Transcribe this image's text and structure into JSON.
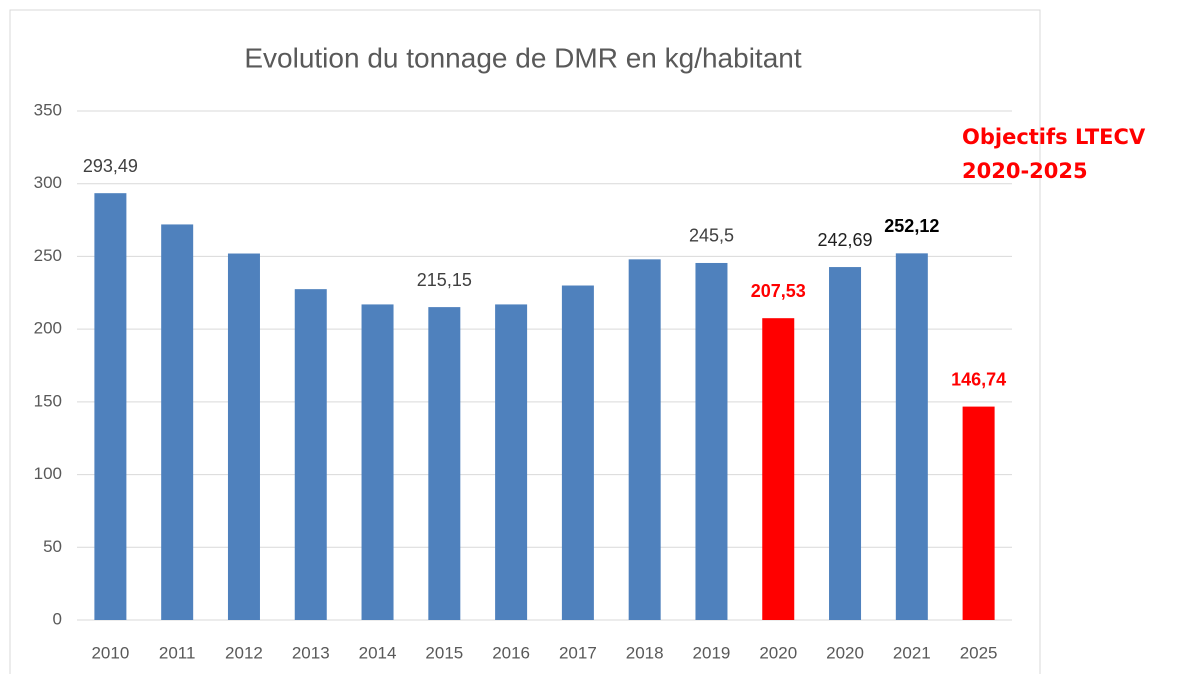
{
  "chart_data": {
    "type": "bar",
    "title": "Evolution du tonnage de DMR en kg/habitant",
    "categories": [
      "2010",
      "2011",
      "2012",
      "2013",
      "2014",
      "2015",
      "2016",
      "2017",
      "2018",
      "2019",
      "2020",
      "2020",
      "2021",
      "2025"
    ],
    "values": [
      293.49,
      272,
      252,
      227.5,
      217,
      215.15,
      217,
      230,
      248,
      245.5,
      207.53,
      242.69,
      252.12,
      146.74
    ],
    "value_labels": [
      "293,49",
      null,
      null,
      null,
      null,
      "215,15",
      null,
      null,
      null,
      "245,5",
      "207,53",
      "242,69",
      "252,12",
      "146,74"
    ],
    "colors": [
      "#4f81bd",
      "#4f81bd",
      "#4f81bd",
      "#4f81bd",
      "#4f81bd",
      "#4f81bd",
      "#4f81bd",
      "#4f81bd",
      "#4f81bd",
      "#4f81bd",
      "#ff0000",
      "#4f81bd",
      "#4f81bd",
      "#ff0000"
    ],
    "value_label_colors": [
      "#404040",
      null,
      null,
      null,
      null,
      "#404040",
      null,
      null,
      null,
      "#404040",
      "#ff0000",
      "#202020",
      "#000000",
      "#ff0000"
    ],
    "value_label_bold": [
      false,
      false,
      false,
      false,
      false,
      false,
      false,
      false,
      false,
      false,
      true,
      false,
      true,
      true
    ],
    "ylim": [
      0,
      350
    ],
    "yticks": [
      0,
      50,
      100,
      150,
      200,
      250,
      300,
      350
    ],
    "grid": true,
    "annotation": [
      "Objectifs LTECV",
      "2020-2025"
    ],
    "annotation_color": "#ff0000"
  }
}
